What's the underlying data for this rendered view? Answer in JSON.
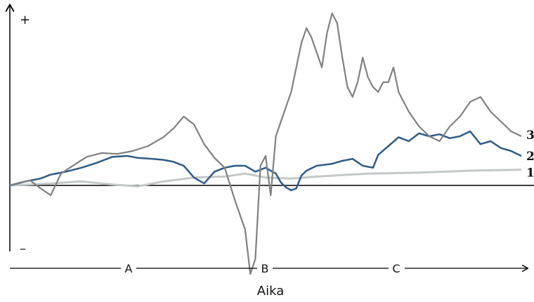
{
  "chart_data": {
    "type": "line",
    "xlabel": "Aika",
    "ylabel": "",
    "y_axis_signs": {
      "top": "+",
      "bottom": "–"
    },
    "phase_labels": [
      "A",
      "B",
      "C"
    ],
    "grid": false,
    "legend": "labels at line ends (right)",
    "series": [
      {
        "name": "1",
        "color": "#c4c8c8",
        "x": [
          0,
          0.08,
          0.14,
          0.2,
          0.25,
          0.3,
          0.36,
          0.42,
          0.46,
          0.5,
          0.55,
          0.6,
          0.7,
          0.8,
          0.9,
          1.0
        ],
        "values": [
          0,
          0.02,
          0.04,
          0.01,
          -0.01,
          0.04,
          0.08,
          0.09,
          0.12,
          0.08,
          0.07,
          0.09,
          0.12,
          0.13,
          0.15,
          0.16
        ]
      },
      {
        "name": "2",
        "color": "#2f5b86",
        "x": [
          0,
          0.03,
          0.06,
          0.08,
          0.11,
          0.14,
          0.17,
          0.2,
          0.23,
          0.25,
          0.28,
          0.3,
          0.32,
          0.34,
          0.36,
          0.38,
          0.4,
          0.42,
          0.44,
          0.46,
          0.48,
          0.5,
          0.52,
          0.53,
          0.54,
          0.55,
          0.56,
          0.57,
          0.58,
          0.6,
          0.63,
          0.65,
          0.67,
          0.69,
          0.71,
          0.72,
          0.74,
          0.76,
          0.78,
          0.8,
          0.82,
          0.84,
          0.86,
          0.88,
          0.9,
          0.92,
          0.94,
          0.96,
          0.98,
          1.0
        ],
        "values": [
          0,
          0.04,
          0.07,
          0.11,
          0.14,
          0.18,
          0.23,
          0.29,
          0.3,
          0.28,
          0.27,
          0.26,
          0.24,
          0.2,
          0.08,
          0.02,
          0.14,
          0.18,
          0.2,
          0.2,
          0.14,
          0.18,
          0.12,
          0.03,
          -0.02,
          -0.05,
          -0.03,
          0.1,
          0.15,
          0.2,
          0.22,
          0.25,
          0.27,
          0.2,
          0.18,
          0.31,
          0.4,
          0.49,
          0.45,
          0.53,
          0.5,
          0.52,
          0.48,
          0.5,
          0.55,
          0.42,
          0.45,
          0.38,
          0.35,
          0.3
        ]
      },
      {
        "name": "3",
        "color": "#808080",
        "x": [
          0,
          0.02,
          0.04,
          0.06,
          0.08,
          0.1,
          0.12,
          0.15,
          0.18,
          0.21,
          0.24,
          0.27,
          0.3,
          0.32,
          0.34,
          0.36,
          0.38,
          0.4,
          0.42,
          0.44,
          0.46,
          0.47,
          0.48,
          0.49,
          0.5,
          0.51,
          0.52,
          0.53,
          0.55,
          0.56,
          0.57,
          0.58,
          0.59,
          0.6,
          0.61,
          0.62,
          0.63,
          0.64,
          0.65,
          0.66,
          0.67,
          0.68,
          0.69,
          0.7,
          0.71,
          0.72,
          0.73,
          0.74,
          0.75,
          0.76,
          0.78,
          0.8,
          0.82,
          0.84,
          0.86,
          0.88,
          0.9,
          0.92,
          0.94,
          0.96,
          0.98,
          1.0
        ],
        "values": [
          0,
          0.03,
          0.05,
          -0.03,
          -0.1,
          0.12,
          0.19,
          0.29,
          0.33,
          0.32,
          0.35,
          0.4,
          0.49,
          0.58,
          0.7,
          0.62,
          0.42,
          0.28,
          0.18,
          -0.15,
          -0.45,
          -0.9,
          -0.75,
          0.2,
          0.3,
          -0.1,
          0.5,
          0.65,
          0.95,
          1.2,
          1.45,
          1.6,
          1.5,
          1.35,
          1.2,
          1.55,
          1.75,
          1.65,
          1.3,
          1.0,
          0.9,
          1.05,
          1.3,
          1.1,
          1.0,
          0.95,
          1.05,
          1.05,
          1.2,
          0.95,
          0.75,
          0.6,
          0.5,
          0.45,
          0.6,
          0.7,
          0.85,
          0.9,
          0.75,
          0.65,
          0.55,
          0.5
        ]
      }
    ]
  }
}
